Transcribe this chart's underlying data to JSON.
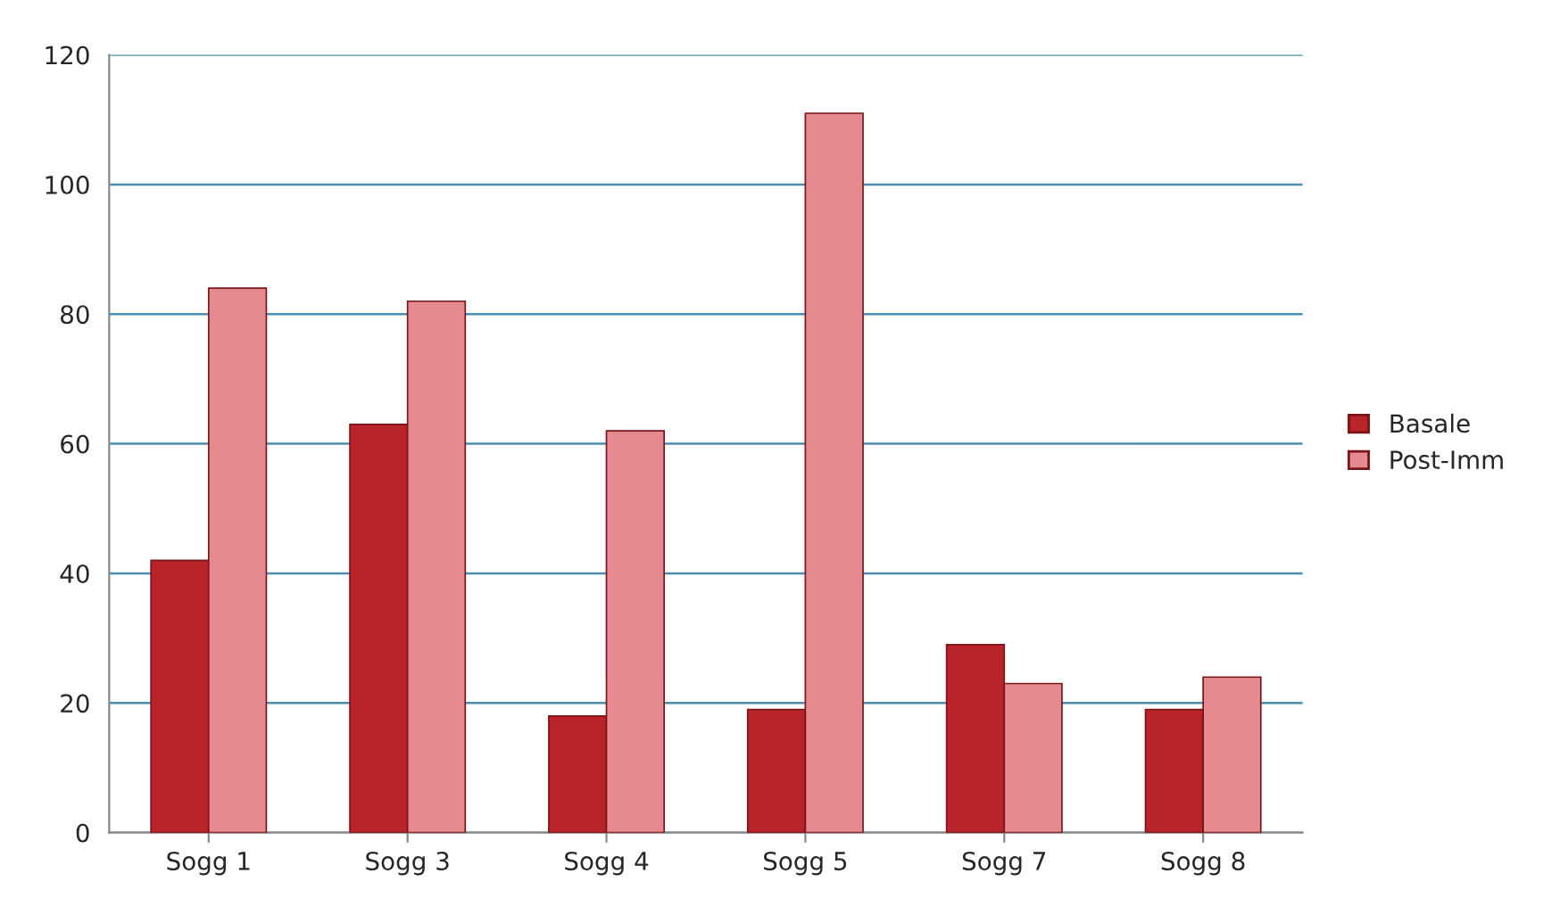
{
  "chart_data": {
    "type": "bar",
    "categories": [
      "Sogg 1",
      "Sogg 3",
      "Sogg 4",
      "Sogg 5",
      "Sogg 7",
      "Sogg 8"
    ],
    "series": [
      {
        "name": "Basale",
        "color": "#b8242a",
        "values": [
          42,
          63,
          18,
          19,
          29,
          19
        ]
      },
      {
        "name": "Post-Imm",
        "color": "#e58a8e",
        "values": [
          84,
          82,
          62,
          111,
          23,
          24
        ]
      }
    ],
    "ylim": [
      0,
      120
    ],
    "yticks": [
      0,
      20,
      40,
      60,
      80,
      100,
      120
    ],
    "grid": "y",
    "legend": "right"
  }
}
